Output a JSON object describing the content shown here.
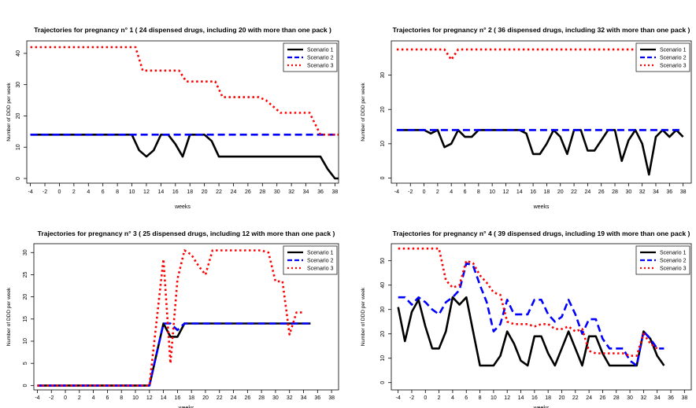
{
  "legend_labels": [
    "Scenario 1",
    "Scenario 2",
    "Scenario 3"
  ],
  "series_colors": [
    "#000000",
    "#0000ff",
    "#ff0000"
  ],
  "chart_data": [
    {
      "type": "line",
      "title": "Trajectories for pregnancy n° 1 ( 24 dispensed drugs, including 20 with more than one pack )",
      "xlabel": "weeks",
      "ylabel": "Number of DDD per week",
      "x_ticks": [
        -4,
        -2,
        0,
        2,
        4,
        6,
        8,
        10,
        12,
        14,
        16,
        18,
        20,
        22,
        24,
        26,
        28,
        30,
        32,
        34,
        36,
        38
      ],
      "y_ticks": [
        0,
        10,
        20,
        30,
        40
      ],
      "xlim": [
        -4.5,
        38.5
      ],
      "ylim": [
        -1.5,
        44
      ],
      "legend_position": "top-right",
      "series": [
        {
          "name": "Scenario 1",
          "color": "#000000",
          "style": "solid",
          "points": [
            [
              -4,
              14
            ],
            [
              10,
              14
            ],
            [
              11,
              9
            ],
            [
              12,
              7
            ],
            [
              13,
              9
            ],
            [
              14,
              14
            ],
            [
              15,
              14
            ],
            [
              16,
              11
            ],
            [
              17,
              7
            ],
            [
              18,
              14
            ],
            [
              19,
              14
            ],
            [
              20,
              14
            ],
            [
              21,
              12
            ],
            [
              22,
              7
            ],
            [
              36,
              7
            ],
            [
              37,
              3
            ],
            [
              38,
              0
            ],
            [
              39,
              0
            ]
          ]
        },
        {
          "name": "Scenario 2",
          "color": "#0000ff",
          "style": "dashed",
          "points": [
            [
              -4,
              14
            ],
            [
              39,
              14
            ]
          ]
        },
        {
          "name": "Scenario 3",
          "color": "#ff0000",
          "style": "dotted",
          "points": [
            [
              -4,
              42
            ],
            [
              10.5,
              42
            ],
            [
              11.5,
              34.5
            ],
            [
              16.5,
              34.5
            ],
            [
              17.5,
              31
            ],
            [
              21.5,
              31
            ],
            [
              22.5,
              26
            ],
            [
              27.5,
              26
            ],
            [
              28.5,
              25
            ],
            [
              30.5,
              21
            ],
            [
              34.5,
              21
            ],
            [
              36,
              14
            ],
            [
              39,
              14
            ]
          ]
        }
      ]
    },
    {
      "type": "line",
      "title": "Trajectories for pregnancy n° 2 ( 36 dispensed drugs, including 32 with more than one pack )",
      "xlabel": "weeks",
      "ylabel": "Number of DDD per week",
      "x_ticks": [
        -4,
        -2,
        0,
        2,
        4,
        6,
        8,
        10,
        12,
        14,
        16,
        18,
        20,
        22,
        24,
        26,
        28,
        30,
        32,
        34,
        36,
        38
      ],
      "y_ticks": [
        0,
        10,
        20,
        30
      ],
      "xlim": [
        -4.8,
        39.2
      ],
      "ylim": [
        -1.5,
        40
      ],
      "legend_position": "top-right",
      "series": [
        {
          "name": "Scenario 1",
          "color": "#000000",
          "style": "solid",
          "points": [
            [
              -4,
              14
            ],
            [
              0,
              14
            ],
            [
              1,
              13
            ],
            [
              2,
              14
            ],
            [
              3,
              9
            ],
            [
              4,
              10
            ],
            [
              5,
              14
            ],
            [
              6,
              12
            ],
            [
              7,
              12
            ],
            [
              8,
              14
            ],
            [
              14,
              14
            ],
            [
              15,
              13
            ],
            [
              16,
              7
            ],
            [
              17,
              7
            ],
            [
              18,
              10
            ],
            [
              19,
              14
            ],
            [
              20,
              12
            ],
            [
              21,
              7
            ],
            [
              22,
              14
            ],
            [
              23,
              14
            ],
            [
              24,
              8
            ],
            [
              25,
              8
            ],
            [
              26,
              11
            ],
            [
              27,
              14
            ],
            [
              28,
              14
            ],
            [
              29,
              5
            ],
            [
              30,
              11
            ],
            [
              31,
              14
            ],
            [
              32,
              10
            ],
            [
              33,
              1
            ],
            [
              34,
              12
            ],
            [
              35,
              14
            ],
            [
              36,
              12
            ],
            [
              37,
              14
            ],
            [
              38,
              12
            ]
          ]
        },
        {
          "name": "Scenario 2",
          "color": "#0000ff",
          "style": "dashed",
          "points": [
            [
              -4,
              14
            ],
            [
              38,
              14
            ]
          ]
        },
        {
          "name": "Scenario 3",
          "color": "#ff0000",
          "style": "dotted",
          "points": [
            [
              -4,
              37.5
            ],
            [
              3,
              37.5
            ],
            [
              4,
              34.5
            ],
            [
              5,
              37.5
            ],
            [
              38,
              37.5
            ]
          ]
        }
      ]
    },
    {
      "type": "line",
      "title": "Trajectories for pregnancy n° 3 ( 25 dispensed drugs, including 12 with more than one pack )",
      "xlabel": "weeks",
      "ylabel": "Number of DDD per week",
      "x_ticks": [
        -4,
        -2,
        0,
        2,
        4,
        6,
        8,
        10,
        12,
        14,
        16,
        18,
        20,
        22,
        24,
        26,
        28,
        30,
        32,
        34,
        36,
        38
      ],
      "y_ticks": [
        0,
        5,
        10,
        15,
        20,
        25,
        30
      ],
      "xlim": [
        -4.5,
        39
      ],
      "ylim": [
        -1,
        32
      ],
      "legend_position": "top-right",
      "series": [
        {
          "name": "Scenario 1",
          "color": "#000000",
          "style": "solid",
          "points": [
            [
              -4,
              0
            ],
            [
              12,
              0
            ],
            [
              14,
              14
            ],
            [
              15,
              11
            ],
            [
              16,
              11
            ],
            [
              17,
              14
            ],
            [
              35,
              14
            ]
          ]
        },
        {
          "name": "Scenario 2",
          "color": "#0000ff",
          "style": "dashed",
          "points": [
            [
              -4,
              0
            ],
            [
              12,
              0
            ],
            [
              14,
              14
            ],
            [
              15,
              14
            ],
            [
              16,
              12.5
            ],
            [
              17,
              14
            ],
            [
              35,
              14
            ]
          ]
        },
        {
          "name": "Scenario 3",
          "color": "#ff0000",
          "style": "dotted",
          "points": [
            [
              -4,
              0
            ],
            [
              12,
              0
            ],
            [
              14,
              28.5
            ],
            [
              15,
              5
            ],
            [
              16,
              24
            ],
            [
              17,
              30.5
            ],
            [
              18,
              29.5
            ],
            [
              19,
              27
            ],
            [
              20,
              25
            ],
            [
              21,
              30.5
            ],
            [
              28,
              30.5
            ],
            [
              29,
              30
            ],
            [
              30,
              23.5
            ],
            [
              31,
              23.5
            ],
            [
              32,
              11.5
            ],
            [
              33,
              16.5
            ],
            [
              34,
              16.5
            ]
          ]
        }
      ]
    },
    {
      "type": "line",
      "title": "Trajectories for pregnancy n° 4 ( 39 dispensed drugs, including 19 with more than one pack )",
      "xlabel": "weeks",
      "ylabel": "Number of DDD per week",
      "x_ticks": [
        -4,
        -2,
        0,
        2,
        4,
        6,
        8,
        10,
        12,
        14,
        16,
        18,
        20,
        22,
        24,
        26,
        28,
        30,
        32,
        34,
        36,
        38
      ],
      "y_ticks": [
        0,
        10,
        20,
        30,
        40,
        50
      ],
      "xlim": [
        -5,
        39
      ],
      "ylim": [
        -3,
        57
      ],
      "legend_position": "top-right",
      "series": [
        {
          "name": "Scenario 1",
          "color": "#000000",
          "style": "solid",
          "points": [
            [
              -4,
              31
            ],
            [
              -3,
              17
            ],
            [
              -2,
              29
            ],
            [
              -1,
              34
            ],
            [
              0,
              23
            ],
            [
              1,
              14
            ],
            [
              2,
              14
            ],
            [
              3,
              21
            ],
            [
              4,
              35
            ],
            [
              5,
              32
            ],
            [
              6,
              35
            ],
            [
              7,
              21
            ],
            [
              8,
              7
            ],
            [
              9,
              7
            ],
            [
              10,
              7
            ],
            [
              11,
              11
            ],
            [
              12,
              21
            ],
            [
              13,
              16
            ],
            [
              14,
              9
            ],
            [
              15,
              7
            ],
            [
              16,
              19
            ],
            [
              17,
              19
            ],
            [
              18,
              12
            ],
            [
              19,
              7
            ],
            [
              20,
              14
            ],
            [
              21,
              21
            ],
            [
              22,
              14
            ],
            [
              23,
              7
            ],
            [
              24,
              19
            ],
            [
              25,
              19
            ],
            [
              26,
              12
            ],
            [
              27,
              7
            ],
            [
              28,
              7
            ],
            [
              30,
              7
            ],
            [
              31,
              7
            ],
            [
              32,
              21
            ],
            [
              33,
              18
            ],
            [
              34,
              11
            ],
            [
              35,
              7
            ]
          ]
        },
        {
          "name": "Scenario 2",
          "color": "#0000ff",
          "style": "dashed",
          "points": [
            [
              -4,
              35
            ],
            [
              -3,
              35
            ],
            [
              -2,
              32
            ],
            [
              -1,
              35
            ],
            [
              0,
              33
            ],
            [
              1,
              30
            ],
            [
              2,
              28
            ],
            [
              3,
              33
            ],
            [
              4,
              35
            ],
            [
              5,
              38
            ],
            [
              6,
              49
            ],
            [
              7,
              48
            ],
            [
              8,
              40
            ],
            [
              9,
              33
            ],
            [
              10,
              21
            ],
            [
              11,
              24
            ],
            [
              12,
              34
            ],
            [
              13,
              28
            ],
            [
              14,
              28
            ],
            [
              15,
              28
            ],
            [
              16,
              34
            ],
            [
              17,
              34
            ],
            [
              18,
              28
            ],
            [
              19,
              25
            ],
            [
              20,
              27
            ],
            [
              21,
              34
            ],
            [
              22,
              28
            ],
            [
              23,
              20
            ],
            [
              24,
              26
            ],
            [
              25,
              26
            ],
            [
              26,
              18
            ],
            [
              27,
              14
            ],
            [
              28,
              14
            ],
            [
              29,
              14
            ],
            [
              30,
              9
            ],
            [
              31,
              7
            ],
            [
              32,
              21
            ],
            [
              33,
              18
            ],
            [
              34,
              14
            ],
            [
              35,
              14
            ]
          ]
        },
        {
          "name": "Scenario 3",
          "color": "#ff0000",
          "style": "dotted",
          "points": [
            [
              -4,
              55
            ],
            [
              2,
              55
            ],
            [
              3,
              42
            ],
            [
              4,
              39
            ],
            [
              5,
              40
            ],
            [
              6,
              50
            ],
            [
              7,
              49
            ],
            [
              8,
              44
            ],
            [
              9,
              41
            ],
            [
              10,
              37
            ],
            [
              11,
              36
            ],
            [
              12,
              25
            ],
            [
              13,
              24
            ],
            [
              14,
              24
            ],
            [
              15,
              24
            ],
            [
              16,
              23
            ],
            [
              17,
              24
            ],
            [
              18,
              24
            ],
            [
              19,
              22
            ],
            [
              20,
              22
            ],
            [
              21,
              23
            ],
            [
              22,
              21
            ],
            [
              23,
              22
            ],
            [
              24,
              13
            ],
            [
              25,
              12
            ],
            [
              26,
              12
            ],
            [
              27,
              12
            ],
            [
              28,
              12
            ],
            [
              29,
              12
            ],
            [
              30,
              11
            ],
            [
              31,
              11
            ],
            [
              32,
              20
            ],
            [
              33,
              16
            ],
            [
              34,
              14
            ]
          ]
        }
      ]
    }
  ]
}
